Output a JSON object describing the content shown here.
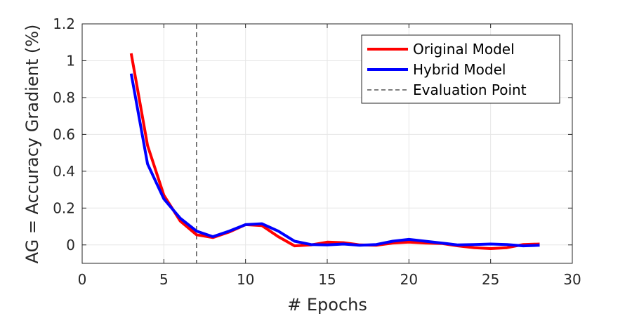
{
  "chart_data": {
    "type": "line",
    "xlabel": "# Epochs",
    "ylabel": "AG = Accuracy Gradient (%)",
    "xlim": [
      0,
      30
    ],
    "ylim": [
      -0.1,
      1.2
    ],
    "xticks": [
      0,
      5,
      10,
      15,
      20,
      25,
      30
    ],
    "yticks": [
      0,
      0.2,
      0.4,
      0.6,
      0.8,
      1,
      1.2
    ],
    "xtick_labels": [
      "0",
      "5",
      "10",
      "15",
      "20",
      "25",
      "30"
    ],
    "ytick_labels": [
      "0",
      "0.2",
      "0.4",
      "0.6",
      "0.8",
      "1",
      "1.2"
    ],
    "grid": true,
    "legend_position": "top-right",
    "x": [
      3,
      4,
      5,
      6,
      7,
      8,
      9,
      10,
      11,
      12,
      13,
      14,
      15,
      16,
      17,
      18,
      19,
      20,
      21,
      22,
      23,
      24,
      25,
      26,
      27,
      28
    ],
    "series": [
      {
        "name": "Original Model",
        "color": "#ff0000",
        "values": [
          1.04,
          0.54,
          0.27,
          0.13,
          0.055,
          0.04,
          0.07,
          0.11,
          0.105,
          0.045,
          -0.005,
          0.0,
          0.015,
          0.012,
          0.0,
          -0.002,
          0.01,
          0.015,
          0.01,
          0.008,
          -0.005,
          -0.015,
          -0.02,
          -0.015,
          0.002,
          0.005
        ]
      },
      {
        "name": "Hybrid Model",
        "color": "#0000ff",
        "values": [
          0.93,
          0.44,
          0.25,
          0.145,
          0.075,
          0.045,
          0.075,
          0.11,
          0.115,
          0.075,
          0.02,
          0.002,
          0.0,
          0.005,
          -0.002,
          0.002,
          0.02,
          0.03,
          0.02,
          0.01,
          0.0,
          0.002,
          0.005,
          0.002,
          -0.005,
          -0.002
        ]
      }
    ],
    "reference_line": {
      "name": "Evaluation Point",
      "x": 7,
      "color": "#555555",
      "style": "dashed"
    }
  }
}
